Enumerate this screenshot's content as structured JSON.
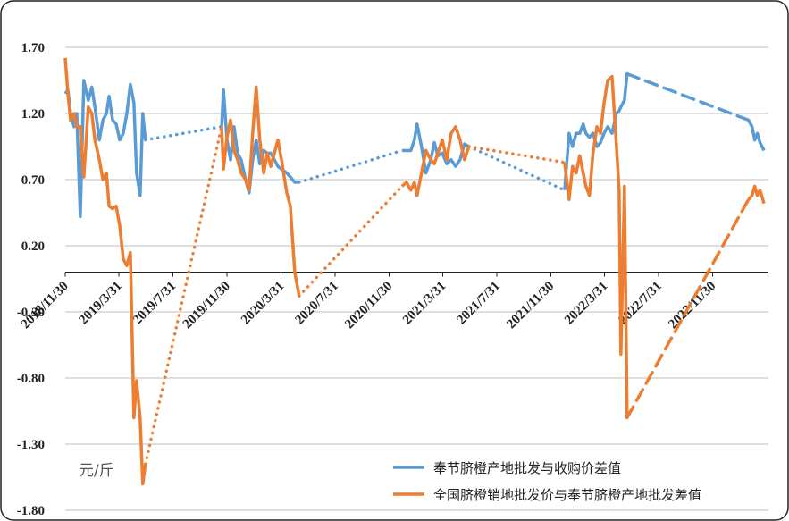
{
  "chart_data": {
    "type": "line",
    "unit_label": "元/斤",
    "x": [
      "2018/11/30",
      "2018/12/6",
      "2018/12/12",
      "2018/12/20",
      "2018/12/26",
      "2019/1/3",
      "2019/1/11",
      "2019/1/21",
      "2019/1/29",
      "2019/2/5",
      "2019/2/15",
      "2019/2/23",
      "2019/3/3",
      "2019/3/9",
      "2019/3/17",
      "2019/3/25",
      "2019/4/2",
      "2019/4/10",
      "2019/4/18",
      "2019/4/26",
      "2019/5/4",
      "2019/5/10",
      "2019/5/18",
      "2019/5/24",
      "2019/5/30",
      "2019/11/18",
      "2019/11/22",
      "2019/11/30",
      "2019/12/8",
      "2019/12/16",
      "2019/12/24",
      "2020/1/1",
      "2020/1/11",
      "2020/1/19",
      "2020/1/27",
      "2020/2/4",
      "2020/2/12",
      "2020/2/21",
      "2020/2/29",
      "2020/3/8",
      "2020/3/16",
      "2020/3/24",
      "2020/4/1",
      "2020/4/13",
      "2020/4/21",
      "2020/5/1",
      "2020/5/11",
      "2020/12/29",
      "2021/1/8",
      "2021/1/18",
      "2021/1/26",
      "2021/2/1",
      "2021/2/11",
      "2021/2/21",
      "2021/3/4",
      "2021/3/12",
      "2021/3/20",
      "2021/3/30",
      "2021/4/9",
      "2021/4/19",
      "2021/4/29",
      "2021/5/9",
      "2021/5/19",
      "2021/5/29",
      "2021/12/31",
      "2022/1/10",
      "2022/1/18",
      "2022/1/26",
      "2022/2/3",
      "2022/2/11",
      "2022/2/17",
      "2022/2/25",
      "2022/3/5",
      "2022/3/14",
      "2022/3/22",
      "2022/3/30",
      "2022/4/7",
      "2022/4/17",
      "2022/4/27",
      "2022/5/3",
      "2022/5/7",
      "2022/5/15",
      "2022/5/21",
      "2023/2/19",
      "2023/2/27",
      "2023/3/5",
      "2023/3/11",
      "2023/3/17",
      "2023/3/26"
    ],
    "series": [
      {
        "name": "奉节脐橙产地批发与收购价差值",
        "color": "#5b9bd5",
        "values": [
          1.35,
          1.38,
          1.2,
          1.1,
          1.2,
          0.42,
          1.45,
          1.3,
          1.4,
          1.25,
          1.0,
          1.15,
          1.2,
          1.33,
          1.15,
          1.12,
          1.0,
          1.05,
          1.2,
          1.42,
          1.28,
          0.75,
          0.58,
          1.2,
          1.0,
          1.1,
          1.38,
          1.0,
          0.85,
          1.1,
          0.9,
          0.85,
          0.7,
          0.6,
          0.85,
          1.0,
          0.82,
          0.92,
          0.9,
          0.9,
          0.85,
          0.8,
          0.78,
          0.75,
          0.72,
          0.68,
          0.68,
          0.92,
          0.92,
          0.92,
          1.0,
          1.12,
          0.95,
          0.75,
          0.85,
          0.98,
          0.88,
          0.9,
          0.82,
          0.85,
          0.8,
          0.85,
          0.97,
          0.95,
          0.62,
          1.05,
          0.95,
          1.05,
          1.05,
          1.12,
          1.05,
          1.02,
          1.05,
          0.95,
          0.98,
          1.05,
          1.1,
          1.05,
          1.2,
          1.22,
          1.25,
          1.3,
          1.5,
          1.15,
          1.1,
          1.0,
          1.05,
          0.98,
          0.92
        ]
      },
      {
        "name": "全国脐橙销地批发价与奉节脐橙产地批发差值",
        "color": "#ed7d31",
        "values": [
          1.62,
          1.35,
          1.15,
          1.2,
          1.1,
          1.1,
          0.72,
          1.25,
          1.2,
          1.0,
          0.85,
          0.7,
          0.75,
          0.5,
          0.48,
          0.5,
          0.35,
          0.1,
          0.05,
          0.15,
          -1.1,
          -0.82,
          -1.1,
          -1.6,
          -1.45,
          1.1,
          0.78,
          1.02,
          1.15,
          0.92,
          0.85,
          0.75,
          0.7,
          0.62,
          1.05,
          1.4,
          1.0,
          0.75,
          0.9,
          0.8,
          0.9,
          1.0,
          0.85,
          0.6,
          0.5,
          0.0,
          -0.18,
          0.65,
          0.68,
          0.62,
          0.68,
          0.58,
          0.75,
          0.92,
          0.85,
          0.82,
          0.9,
          1.0,
          0.85,
          1.05,
          1.1,
          1.0,
          0.85,
          0.95,
          0.83,
          0.55,
          0.8,
          0.75,
          0.88,
          0.75,
          0.65,
          0.58,
          0.9,
          1.1,
          1.05,
          1.28,
          1.45,
          1.48,
          0.95,
          0.62,
          -0.62,
          0.65,
          -1.1,
          0.55,
          0.58,
          0.65,
          0.58,
          0.62,
          0.52
        ]
      }
    ],
    "gap_styles": [
      "dotted",
      "dotted",
      "dotted",
      "dashed"
    ],
    "xlim": [
      "2018/11/30",
      "2023/4/5"
    ],
    "xticks": [
      "2018/11/30",
      "2019/3/31",
      "2019/7/31",
      "2019/11/30",
      "2020/3/31",
      "2020/7/31",
      "2020/11/30",
      "2021/3/31",
      "2021/7/31",
      "2021/11/30",
      "2022/3/31",
      "2022/7/31",
      "2022/11/30"
    ],
    "ylim": [
      -1.8,
      1.7
    ],
    "yticks": [
      {
        "value": 1.7,
        "label": "1.70"
      },
      {
        "value": 1.2,
        "label": "1.20"
      },
      {
        "value": 0.7,
        "label": "0.70"
      },
      {
        "value": 0.2,
        "label": "0.20"
      },
      {
        "value": -0.3,
        "label": "-0.30"
      },
      {
        "value": -0.8,
        "label": "-0.80"
      },
      {
        "value": -1.3,
        "label": "-1.30"
      },
      {
        "value": -1.8,
        "label": "-1.80"
      }
    ],
    "grid": true,
    "legend": "bottom-right"
  }
}
